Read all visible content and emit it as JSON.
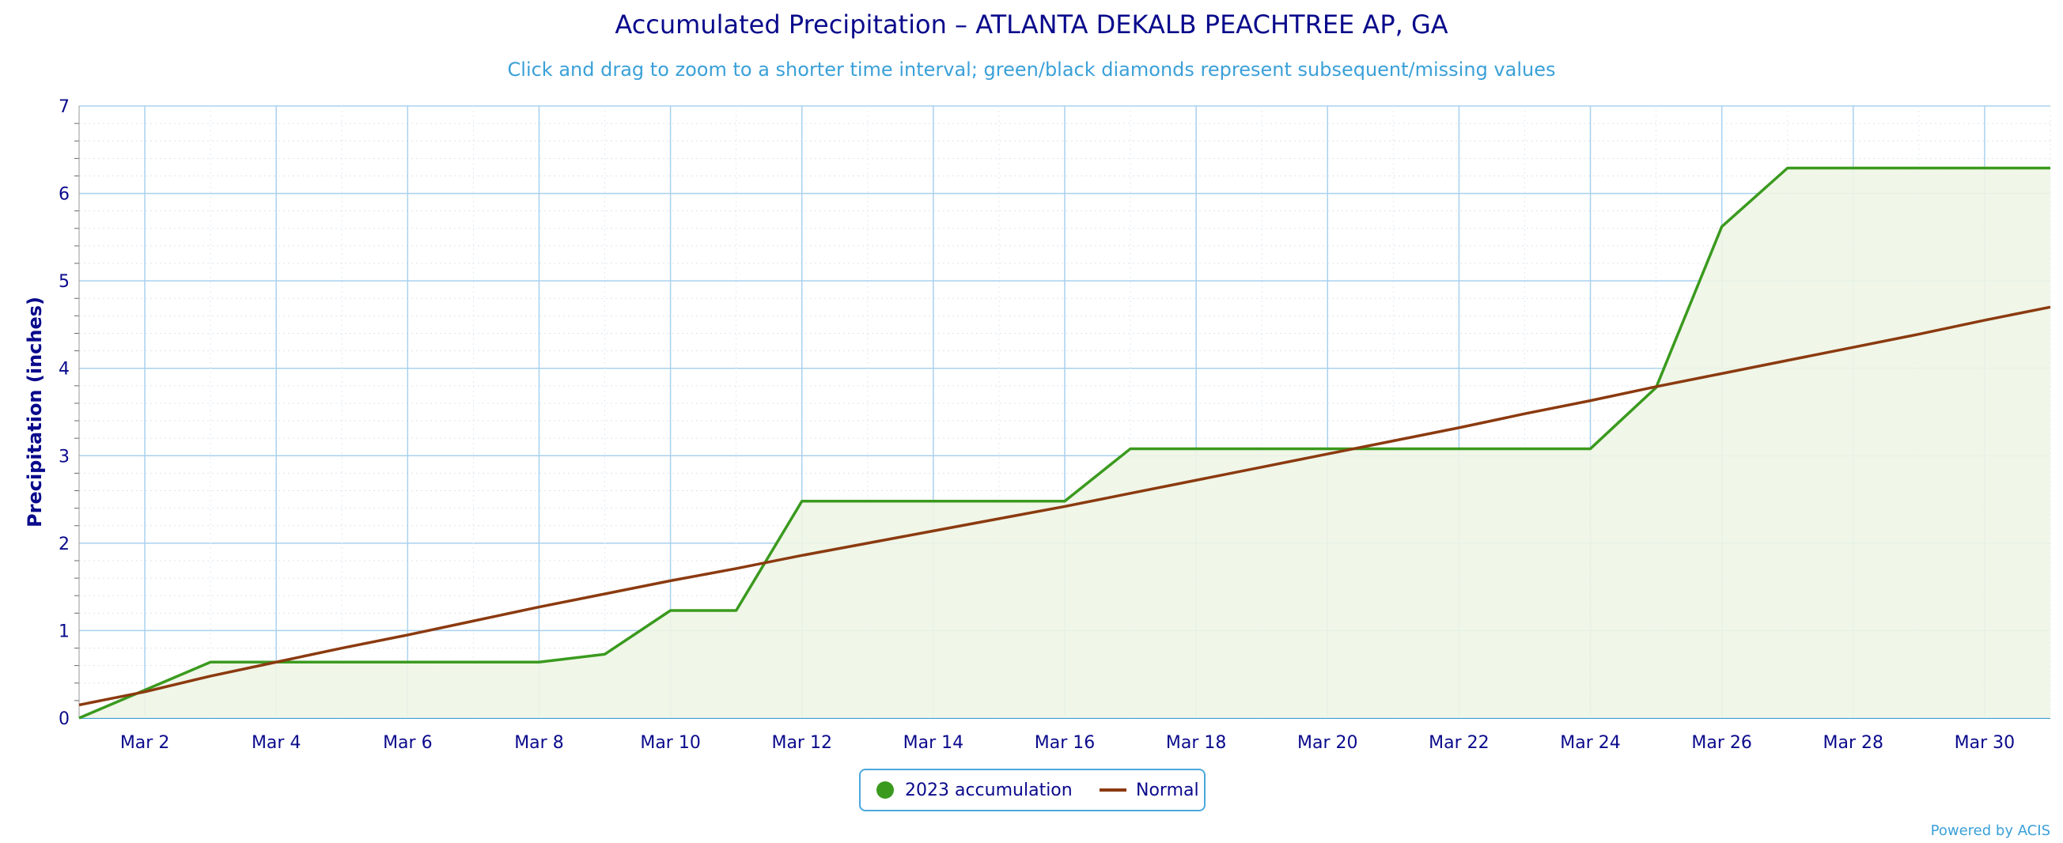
{
  "chart_data": {
    "type": "line",
    "title": "Accumulated Precipitation – ATLANTA DEKALB PEACHTREE AP, GA",
    "subtitle": "Click and drag to zoom to a shorter time interval; green/black diamonds represent subsequent/missing values",
    "ylabel": "Precipitation (inches)",
    "xlabel": "",
    "x": [
      "Mar 1",
      "Mar 2",
      "Mar 3",
      "Mar 4",
      "Mar 5",
      "Mar 6",
      "Mar 7",
      "Mar 8",
      "Mar 9",
      "Mar 10",
      "Mar 11",
      "Mar 12",
      "Mar 13",
      "Mar 14",
      "Mar 15",
      "Mar 16",
      "Mar 17",
      "Mar 18",
      "Mar 19",
      "Mar 20",
      "Mar 21",
      "Mar 22",
      "Mar 23",
      "Mar 24",
      "Mar 25",
      "Mar 26",
      "Mar 27",
      "Mar 28",
      "Mar 29",
      "Mar 30",
      "Mar 31"
    ],
    "x_tick_labels": [
      "Mar 2",
      "Mar 4",
      "Mar 6",
      "Mar 8",
      "Mar 10",
      "Mar 12",
      "Mar 14",
      "Mar 16",
      "Mar 18",
      "Mar 20",
      "Mar 22",
      "Mar 24",
      "Mar 26",
      "Mar 28",
      "Mar 30"
    ],
    "y_ticks": [
      "0",
      "1",
      "2",
      "3",
      "4",
      "5",
      "6",
      "7"
    ],
    "ylim": [
      0,
      7
    ],
    "grid": true,
    "legend_position": "bottom-center",
    "series": [
      {
        "name": "2023 accumulation",
        "color": "#3a9a1e",
        "fill": "#eef5e6",
        "values": [
          0.0,
          0.32,
          0.64,
          0.64,
          0.64,
          0.64,
          0.64,
          0.64,
          0.73,
          1.23,
          1.23,
          2.48,
          2.48,
          2.48,
          2.48,
          2.48,
          3.08,
          3.08,
          3.08,
          3.08,
          3.08,
          3.08,
          3.08,
          3.08,
          3.78,
          5.62,
          6.29,
          6.29,
          6.29,
          6.29,
          6.29
        ]
      },
      {
        "name": "Normal",
        "color": "#8b3a0f",
        "values": [
          0.15,
          0.3,
          0.48,
          0.64,
          0.8,
          0.95,
          1.11,
          1.27,
          1.42,
          1.57,
          1.71,
          1.86,
          2.0,
          2.14,
          2.28,
          2.42,
          2.57,
          2.72,
          2.87,
          3.02,
          3.17,
          3.32,
          3.48,
          3.63,
          3.79,
          3.94,
          4.09,
          4.24,
          4.39,
          4.55,
          4.7
        ]
      }
    ]
  },
  "credit": "Powered by ACIS"
}
